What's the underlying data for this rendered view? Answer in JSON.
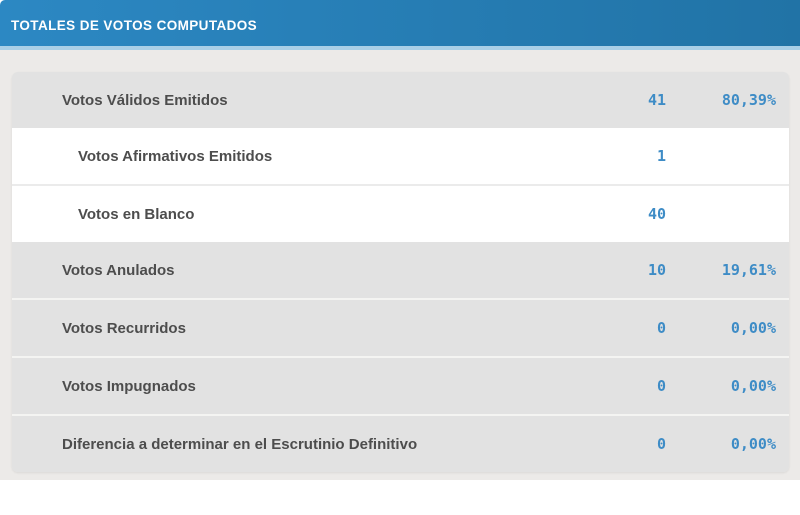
{
  "header": {
    "title": "TOTALES DE VOTOS COMPUTADOS"
  },
  "colors": {
    "header_gradient_left": "#2c88c3",
    "header_gradient_right": "#2173a6",
    "light_blue_strip": "#a9cfe7",
    "page_background": "#eceae8",
    "row_gray": "#e2e2e2",
    "row_white": "#ffffff",
    "label_text": "#4d4d4d",
    "number_blue": "#3e8cc6"
  },
  "table": {
    "rows": [
      {
        "label": "Votos Válidos Emitidos",
        "count": "41",
        "percent": "80,39%",
        "style": "gray",
        "level": 0
      },
      {
        "label": "Votos Afirmativos Emitidos",
        "count": "1",
        "percent": "",
        "style": "white",
        "level": 1
      },
      {
        "label": "Votos en Blanco",
        "count": "40",
        "percent": "",
        "style": "white",
        "level": 1
      },
      {
        "label": "Votos Anulados",
        "count": "10",
        "percent": "19,61%",
        "style": "gray",
        "level": 0
      },
      {
        "label": "Votos Recurridos",
        "count": "0",
        "percent": "0,00%",
        "style": "gray",
        "level": 0
      },
      {
        "label": "Votos Impugnados",
        "count": "0",
        "percent": "0,00%",
        "style": "gray",
        "level": 0
      },
      {
        "label": "Diferencia a determinar en el Escrutinio Definitivo",
        "count": "0",
        "percent": "0,00%",
        "style": "gray",
        "level": 0
      }
    ]
  }
}
